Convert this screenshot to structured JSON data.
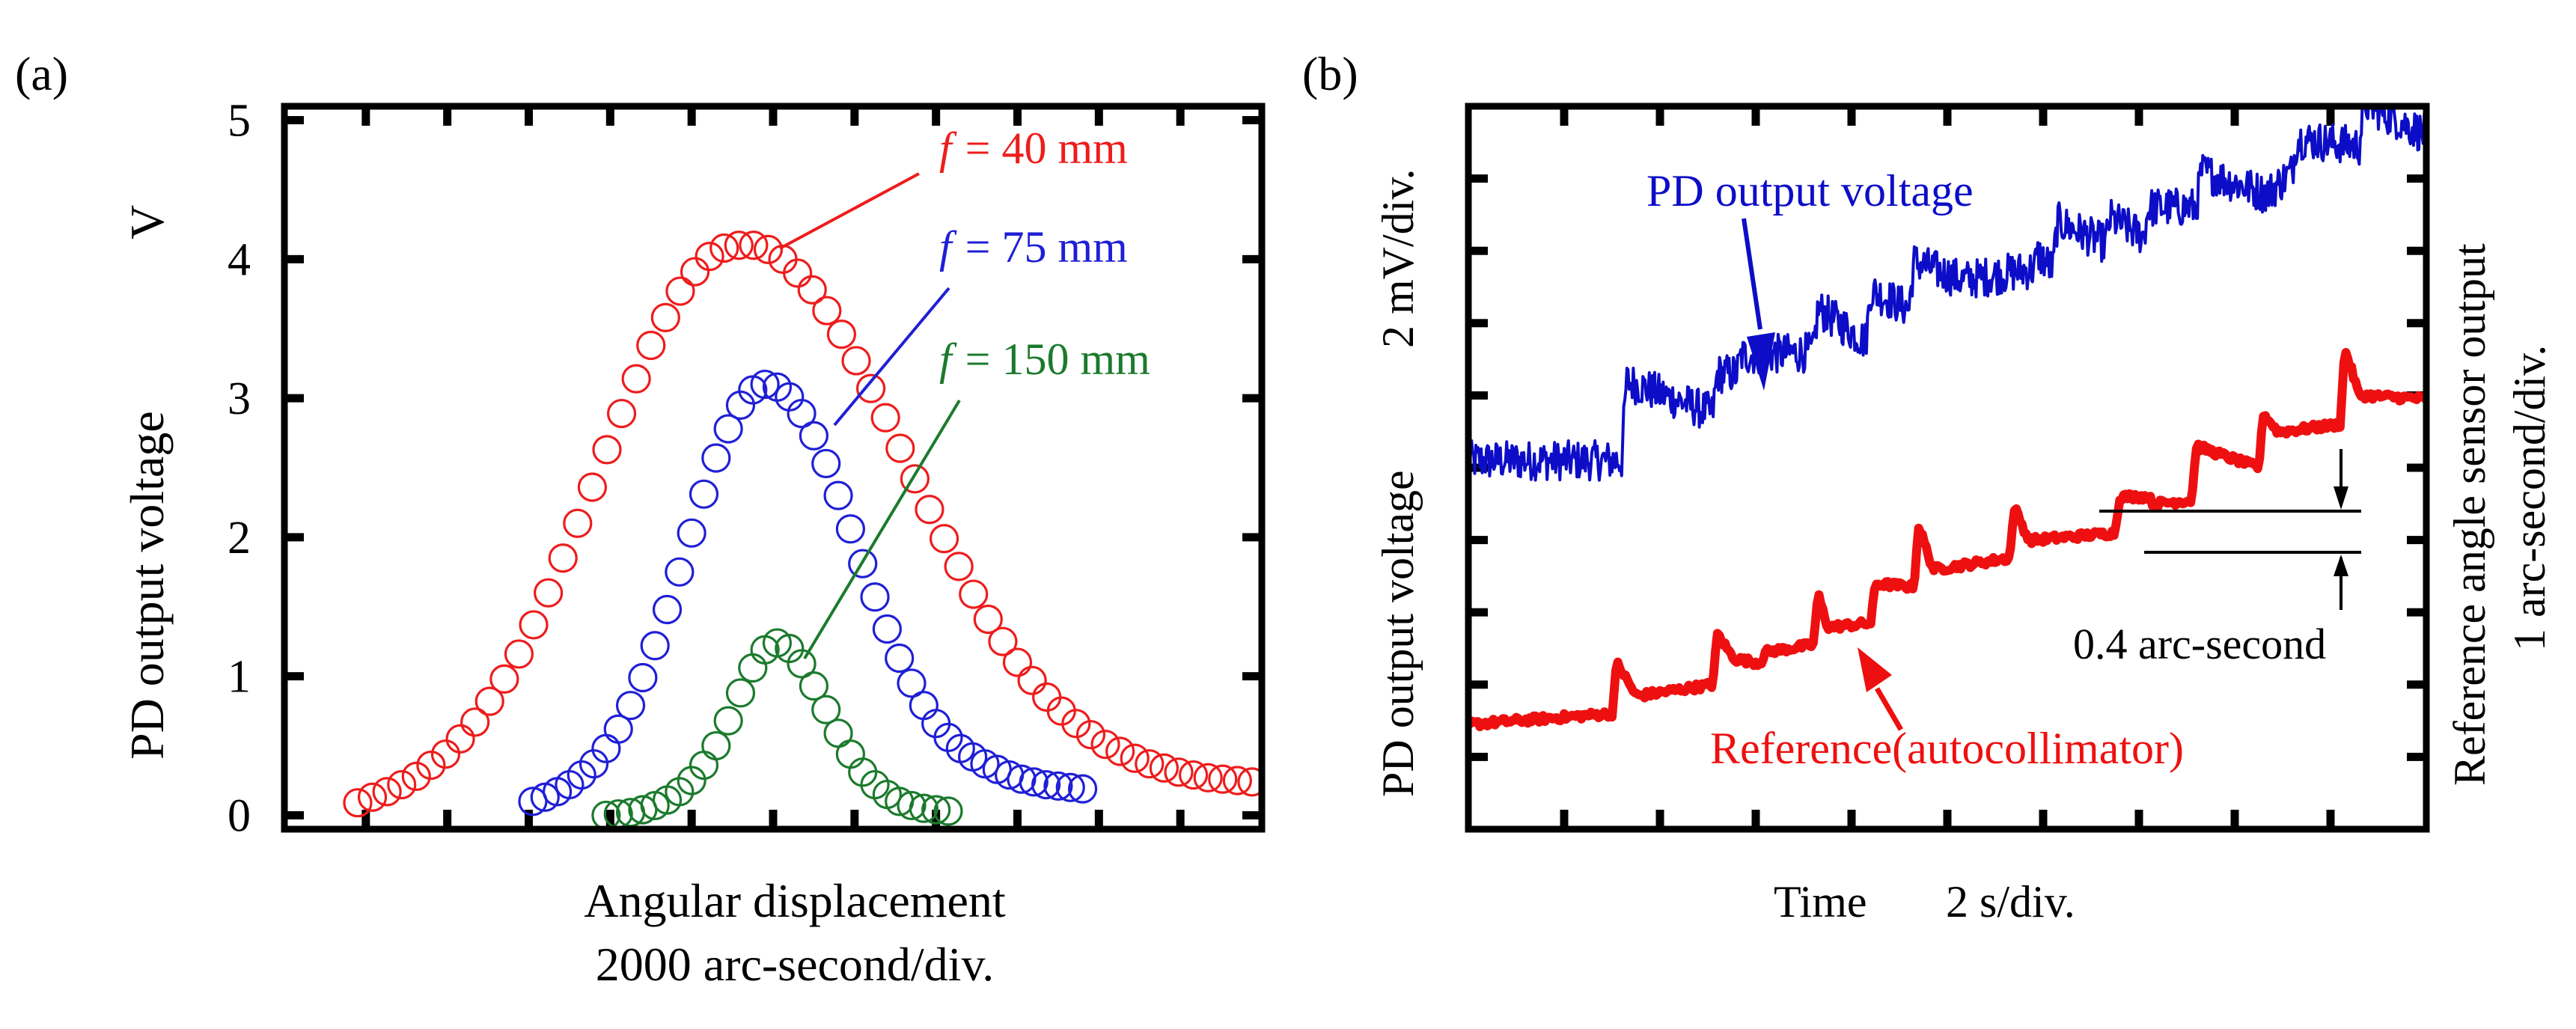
{
  "chart_data": [
    {
      "panel_label": "(a)",
      "type": "scatter",
      "title": "",
      "xlabel_line1": "Angular displacement",
      "xlabel_line2": "2000 arc-second/div.",
      "ylabel": "PD output voltage",
      "yunit": "V",
      "ylim": [
        -0.1,
        5.1
      ],
      "xlim": [
        -6.0,
        6.0
      ],
      "yticks": [
        0,
        1,
        2,
        3,
        4,
        5
      ],
      "ytick_labels": [
        "0",
        "1",
        "2",
        "3",
        "4",
        "5"
      ],
      "xtick_positions": [
        -5,
        -4,
        -3,
        -2,
        -1,
        0,
        1,
        2,
        3,
        4,
        5
      ],
      "marker": "open-circle",
      "series": [
        {
          "name": "f = 40 mm",
          "label_f": "f",
          "label_rest": "= 40 mm",
          "color": "#ee1c1c",
          "x": [
            -5.1,
            -4.92,
            -4.74,
            -4.56,
            -4.38,
            -4.2,
            -4.02,
            -3.84,
            -3.66,
            -3.48,
            -3.3,
            -3.12,
            -2.94,
            -2.76,
            -2.58,
            -2.4,
            -2.22,
            -2.04,
            -1.86,
            -1.68,
            -1.5,
            -1.32,
            -1.14,
            -0.96,
            -0.78,
            -0.6,
            -0.42,
            -0.24,
            -0.06,
            0.12,
            0.3,
            0.48,
            0.66,
            0.84,
            1.02,
            1.2,
            1.38,
            1.56,
            1.74,
            1.92,
            2.1,
            2.28,
            2.46,
            2.64,
            2.82,
            3.0,
            3.18,
            3.36,
            3.54,
            3.72,
            3.9,
            4.08,
            4.26,
            4.44,
            4.62,
            4.8,
            4.98,
            5.16,
            5.34,
            5.52,
            5.7,
            5.88
          ],
          "y": [
            0.09,
            0.13,
            0.17,
            0.22,
            0.28,
            0.36,
            0.44,
            0.55,
            0.67,
            0.82,
            0.98,
            1.16,
            1.37,
            1.6,
            1.85,
            2.1,
            2.36,
            2.63,
            2.89,
            3.14,
            3.38,
            3.58,
            3.77,
            3.91,
            4.02,
            4.08,
            4.1,
            4.1,
            4.07,
            4.0,
            3.9,
            3.78,
            3.63,
            3.46,
            3.27,
            3.07,
            2.86,
            2.64,
            2.42,
            2.2,
            1.99,
            1.79,
            1.59,
            1.41,
            1.25,
            1.1,
            0.97,
            0.85,
            0.75,
            0.66,
            0.58,
            0.51,
            0.46,
            0.41,
            0.37,
            0.34,
            0.31,
            0.29,
            0.27,
            0.26,
            0.25,
            0.24
          ]
        },
        {
          "name": "f = 75 mm",
          "label_f": "f",
          "label_rest": "= 75 mm",
          "color": "#1f1fd6",
          "x": [
            -2.95,
            -2.8,
            -2.65,
            -2.5,
            -2.35,
            -2.2,
            -2.05,
            -1.9,
            -1.75,
            -1.6,
            -1.45,
            -1.3,
            -1.15,
            -1.0,
            -0.85,
            -0.7,
            -0.55,
            -0.4,
            -0.25,
            -0.1,
            0.05,
            0.2,
            0.35,
            0.5,
            0.65,
            0.8,
            0.95,
            1.1,
            1.25,
            1.4,
            1.55,
            1.7,
            1.85,
            2.0,
            2.15,
            2.3,
            2.45,
            2.6,
            2.75,
            2.9,
            3.05,
            3.2,
            3.35,
            3.5,
            3.65,
            3.8
          ],
          "y": [
            0.1,
            0.13,
            0.17,
            0.22,
            0.29,
            0.37,
            0.48,
            0.62,
            0.79,
            0.99,
            1.22,
            1.48,
            1.75,
            2.03,
            2.31,
            2.57,
            2.78,
            2.95,
            3.06,
            3.1,
            3.08,
            3.01,
            2.89,
            2.73,
            2.53,
            2.3,
            2.06,
            1.81,
            1.57,
            1.34,
            1.13,
            0.95,
            0.79,
            0.66,
            0.56,
            0.48,
            0.42,
            0.37,
            0.33,
            0.29,
            0.26,
            0.24,
            0.22,
            0.21,
            0.2,
            0.19
          ]
        },
        {
          "name": "f = 150 mm",
          "label_f": "f",
          "label_rest": "= 150 mm",
          "color": "#1b7a2c",
          "x": [
            -2.05,
            -1.9,
            -1.75,
            -1.6,
            -1.45,
            -1.3,
            -1.15,
            -1.0,
            -0.85,
            -0.7,
            -0.55,
            -0.4,
            -0.25,
            -0.1,
            0.05,
            0.2,
            0.35,
            0.5,
            0.65,
            0.8,
            0.95,
            1.1,
            1.25,
            1.4,
            1.55,
            1.7,
            1.85,
            2.0,
            2.15
          ],
          "y": [
            0.0,
            0.01,
            0.02,
            0.04,
            0.07,
            0.11,
            0.17,
            0.25,
            0.36,
            0.5,
            0.68,
            0.88,
            1.06,
            1.19,
            1.24,
            1.2,
            1.09,
            0.93,
            0.76,
            0.59,
            0.44,
            0.31,
            0.22,
            0.15,
            0.1,
            0.07,
            0.05,
            0.04,
            0.03
          ]
        }
      ]
    },
    {
      "panel_label": "(b)",
      "type": "line",
      "title": "",
      "xlabel": "Time",
      "xunit": "2 s/div.",
      "ylabel_left": "PD output voltage",
      "ylabel_left_unit": "2 mV/div.",
      "ylabel_right_line1": "Reference angle sensor output",
      "ylabel_right_line2": "1 arc-second/div.",
      "xlim": [
        0,
        10
      ],
      "ylim": [
        0,
        10
      ],
      "xtick_positions": [
        1,
        2,
        3,
        4,
        5,
        6,
        7,
        8,
        9
      ],
      "ytick_positions": [
        1,
        2,
        3,
        4,
        5,
        6,
        7,
        8,
        9
      ],
      "annotation": "0.4 arc-second",
      "series": [
        {
          "name": "PD output voltage",
          "color": "#0d0dc8",
          "x": [
            0.0,
            1.6,
            1.65,
            2.55,
            2.6,
            2.8,
            2.85,
            3.6,
            3.65,
            4.15,
            4.2,
            4.6,
            4.65,
            5.15,
            5.2,
            5.9,
            5.95,
            6.1,
            6.15,
            6.65,
            6.7,
            7.05,
            7.1,
            7.6,
            7.65,
            8.3,
            8.35,
            8.6,
            8.65,
            9.3,
            9.35,
            10.0
          ],
          "y": [
            5.1,
            5.1,
            6.2,
            5.75,
            6.3,
            6.3,
            6.55,
            6.6,
            7.2,
            6.75,
            7.45,
            7.2,
            7.85,
            7.6,
            7.6,
            7.75,
            7.95,
            7.75,
            8.4,
            8.1,
            8.45,
            8.2,
            8.6,
            8.6,
            9.1,
            8.8,
            8.8,
            9.1,
            9.55,
            9.45,
            10.05,
            9.6
          ]
        },
        {
          "name": "Reference(autocollimator)",
          "color": "#ee1010",
          "x": [
            0.0,
            1.5,
            1.55,
            1.75,
            1.8,
            2.55,
            2.6,
            2.75,
            2.8,
            3.05,
            3.1,
            3.6,
            3.65,
            3.75,
            3.8,
            4.2,
            4.25,
            4.65,
            4.7,
            4.85,
            4.9,
            5.65,
            5.7,
            5.85,
            5.9,
            6.75,
            6.8,
            7.1,
            7.15,
            7.55,
            7.6,
            8.25,
            8.3,
            8.45,
            8.5,
            9.1,
            9.15,
            9.3,
            9.35,
            10.0
          ],
          "y": [
            1.45,
            1.6,
            2.3,
            1.85,
            1.85,
            2.0,
            2.7,
            2.4,
            2.35,
            2.3,
            2.45,
            2.55,
            3.25,
            2.8,
            2.8,
            2.85,
            3.4,
            3.35,
            4.2,
            3.6,
            3.6,
            3.75,
            4.45,
            4.0,
            4.0,
            4.1,
            4.6,
            4.6,
            4.5,
            4.55,
            5.3,
            5.0,
            5.75,
            5.5,
            5.5,
            5.6,
            6.65,
            6.0,
            6.0,
            5.95
          ]
        }
      ]
    }
  ]
}
